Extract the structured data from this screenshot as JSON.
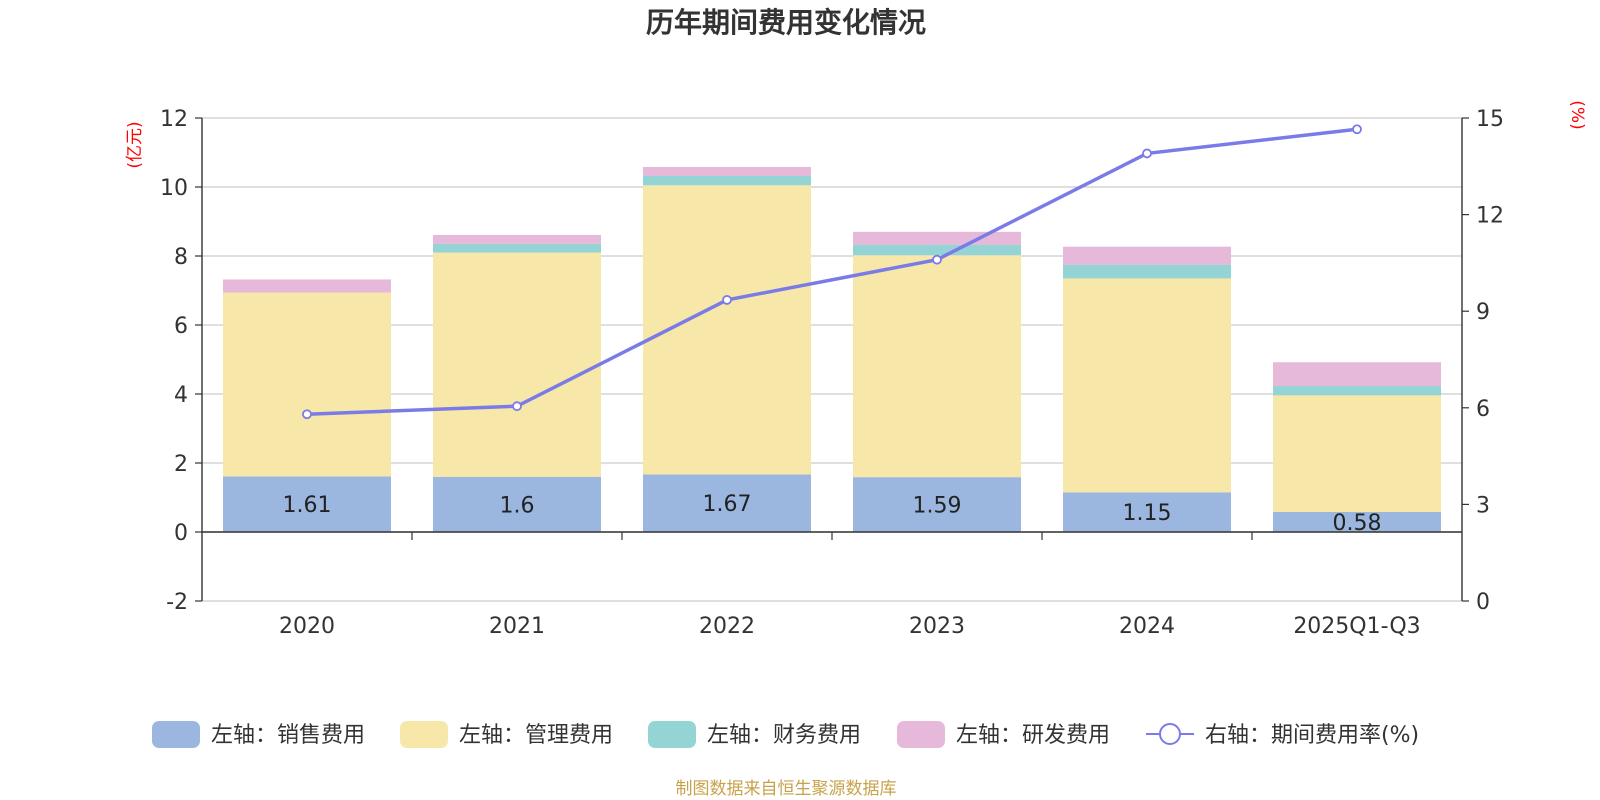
{
  "chart_data": {
    "type": "bar",
    "stacked": true,
    "title": "历年期间费用变化情况",
    "categories": [
      "2020",
      "2021",
      "2022",
      "2023",
      "2024",
      "2025Q1-Q3"
    ],
    "left_axis": {
      "unit": "(亿元)",
      "min": -2,
      "max": 12,
      "ticks": [
        -2,
        0,
        2,
        4,
        6,
        8,
        10,
        12
      ]
    },
    "right_axis": {
      "unit": "(%)",
      "min": 0,
      "max": 15,
      "ticks": [
        0,
        3,
        6,
        9,
        12,
        15
      ]
    },
    "series": [
      {
        "name": "左轴：销售费用",
        "type": "bar",
        "axis": "left",
        "color": "#9bb7e0",
        "values": [
          1.61,
          1.6,
          1.67,
          1.59,
          1.15,
          0.58
        ],
        "labels": [
          "1.61",
          "1.6",
          "1.67",
          "1.59",
          "1.15",
          "0.58"
        ]
      },
      {
        "name": "左轴：管理费用",
        "type": "bar",
        "axis": "left",
        "color": "#f7e7a8",
        "values": [
          5.33,
          6.5,
          8.38,
          6.43,
          6.2,
          3.38
        ]
      },
      {
        "name": "左轴：财务费用",
        "type": "bar",
        "axis": "left",
        "color": "#94d4d4",
        "values": [
          0.0,
          0.25,
          0.27,
          0.3,
          0.4,
          0.27
        ]
      },
      {
        "name": "左轴：研发费用",
        "type": "bar",
        "axis": "left",
        "color": "#e6b9da",
        "values": [
          0.38,
          0.26,
          0.26,
          0.38,
          0.52,
          0.69
        ]
      },
      {
        "name": "右轴：期间费用率(%)",
        "type": "line",
        "axis": "right",
        "color": "#7b7be8",
        "values": [
          5.8,
          6.05,
          9.35,
          10.6,
          13.9,
          14.65
        ]
      }
    ],
    "grid": true
  },
  "source": "制图数据来自恒生聚源数据库"
}
